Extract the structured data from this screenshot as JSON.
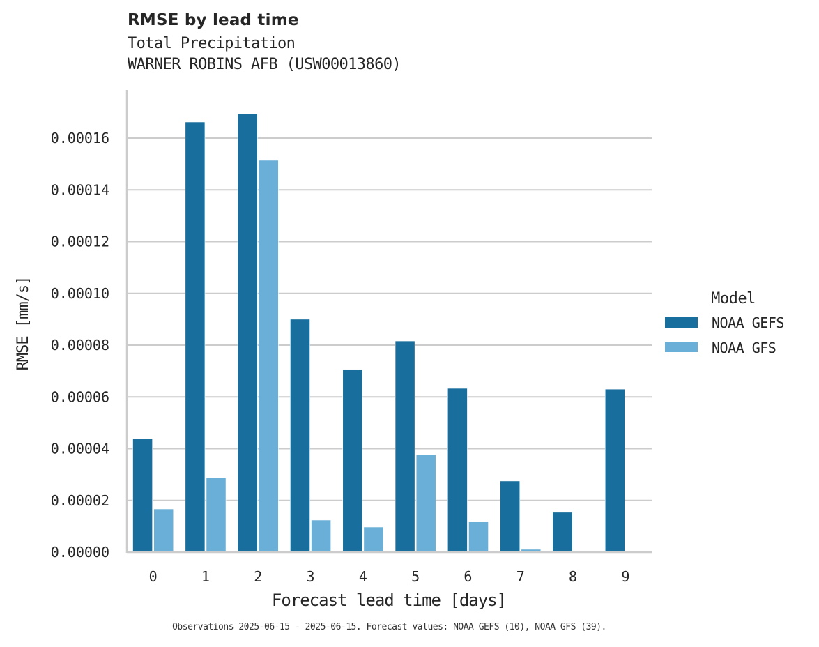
{
  "header": {
    "title": "RMSE by lead time",
    "subtitle_line1": "Total Precipitation",
    "subtitle_line2": "WARNER ROBINS AFB (USW00013860)"
  },
  "footnote": "Observations 2025-06-15 - 2025-06-15. Forecast values: NOAA GEFS (10), NOAA GFS (39).",
  "colors": {
    "NOAA GEFS": "#186e9c",
    "NOAA GFS": "#69afd7",
    "grid": "#cccccc",
    "spine": "#cccccc",
    "text": "#262626"
  },
  "chart_data": {
    "type": "bar",
    "title": "RMSE by lead time",
    "subtitle": "Total Precipitation\nWARNER ROBINS AFB (USW00013860)",
    "xlabel": "Forecast lead time [days]",
    "ylabel": "RMSE [mm/s]",
    "categories": [
      "0",
      "1",
      "2",
      "3",
      "4",
      "5",
      "6",
      "7",
      "8",
      "9"
    ],
    "series": [
      {
        "name": "NOAA GEFS",
        "values": [
          4.39e-05,
          0.0001662,
          0.0001694,
          9e-05,
          7.06e-05,
          8.16e-05,
          6.33e-05,
          2.75e-05,
          1.54e-05,
          6.3e-05
        ]
      },
      {
        "name": "NOAA GFS",
        "values": [
          1.67e-05,
          2.88e-05,
          0.0001514,
          1.24e-05,
          9.7e-06,
          3.77e-05,
          1.19e-05,
          1.1e-06,
          null,
          null
        ]
      }
    ],
    "ylim": [
      0,
      0.000178
    ],
    "yticks": [
      0,
      2e-05,
      4e-05,
      6e-05,
      8e-05,
      0.0001,
      0.00012,
      0.00014,
      0.00016
    ],
    "ytick_labels": [
      "0.00000",
      "0.00002",
      "0.00004",
      "0.00006",
      "0.00008",
      "0.00010",
      "0.00012",
      "0.00014",
      "0.00016"
    ],
    "grid": "horizontal",
    "legend": {
      "title": "Model",
      "position": "right",
      "entries": [
        "NOAA GEFS",
        "NOAA GFS"
      ]
    }
  }
}
